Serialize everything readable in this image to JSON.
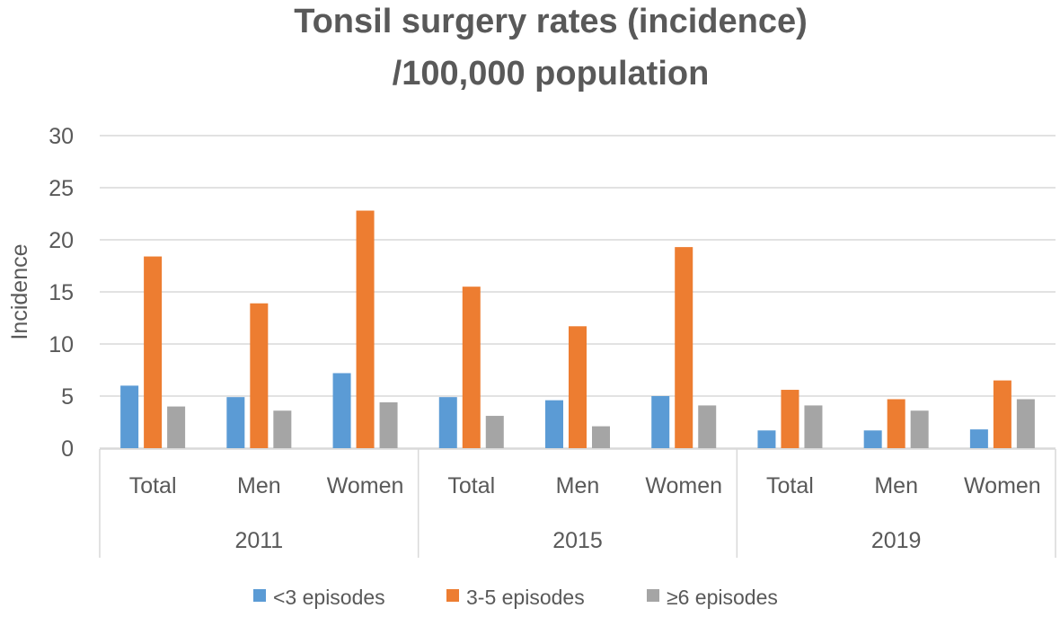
{
  "chart_data": {
    "type": "bar",
    "title_lines": [
      "Tonsil surgery rates (incidence)",
      "/100,000 population"
    ],
    "ylabel": "Incidence",
    "xlabel": "",
    "ylim": [
      0,
      30
    ],
    "yticks": [
      0,
      5,
      10,
      15,
      20,
      25,
      30
    ],
    "grid": true,
    "legend_position": "bottom",
    "groups": [
      {
        "label": "2011",
        "categories": [
          "Total",
          "Men",
          "Women"
        ]
      },
      {
        "label": "2015",
        "categories": [
          "Total",
          "Men",
          "Women"
        ]
      },
      {
        "label": "2019",
        "categories": [
          "Total",
          "Men",
          "Women"
        ]
      }
    ],
    "series": [
      {
        "name": "<3 episodes",
        "color": "#5b9bd5",
        "values": [
          6.0,
          4.9,
          7.2,
          4.9,
          4.6,
          5.0,
          1.7,
          1.7,
          1.8
        ]
      },
      {
        "name": "3-5 episodes",
        "color": "#ed7d31",
        "values": [
          18.4,
          13.9,
          22.8,
          15.5,
          11.7,
          19.3,
          5.6,
          4.7,
          6.5
        ]
      },
      {
        "name": "≥6 episodes",
        "color": "#a5a5a5",
        "values": [
          4.0,
          3.6,
          4.4,
          3.1,
          2.1,
          4.1,
          4.1,
          3.6,
          4.7
        ]
      }
    ]
  }
}
